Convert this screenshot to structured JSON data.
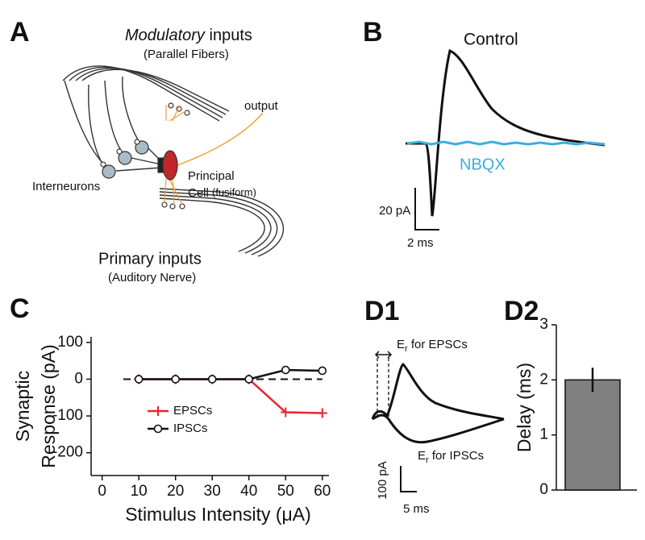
{
  "panels": [
    "A",
    "B",
    "C",
    "D1",
    "D2"
  ],
  "diagram": {
    "modulatory_italic": "Modulatory",
    "modulatory_rest": "inputs",
    "parallel_fibers": "(Parallel Fibers)",
    "output": "output",
    "interneurons": "Interneurons",
    "principal": "Principal",
    "cell": "Cell",
    "fusiform": "(fusiform)",
    "primary": "Primary inputs",
    "auditory": "(Auditory Nerve)"
  },
  "traces_b": {
    "control": "Control",
    "nbqx": "NBQX",
    "scale_y": "20 pA",
    "scale_x": "2 ms"
  },
  "traces_d1": {
    "e_symbol": "E",
    "e_subscript": "r",
    "epsc_text": "for EPSCs",
    "ipsc_text": "for IPSCs",
    "scale_y": "100 pA",
    "scale_x": "5 ms"
  },
  "chart_data": [
    {
      "type": "line",
      "xlabel": "Stimulus Intensity  (μA)",
      "ylabel": [
        "Synaptic",
        "Response (pA)"
      ],
      "x": [
        10,
        20,
        30,
        40,
        50,
        60
      ],
      "series": [
        {
          "name": "EPSCs",
          "color": "#e8262b",
          "marker": "plus",
          "values": [
            0,
            0,
            0,
            0,
            -90,
            -92
          ]
        },
        {
          "name": "IPSCs",
          "color": "#111111",
          "marker": "circle",
          "values": [
            0,
            0,
            0,
            0,
            25,
            23
          ]
        }
      ],
      "xlim": [
        -3,
        61.8
      ],
      "ylim": [
        -262,
        115
      ],
      "xticks": [
        0,
        10,
        20,
        30,
        40,
        50,
        60
      ],
      "yticks": [
        100,
        0,
        -100,
        -200
      ],
      "hline": 0,
      "legend": "lower left"
    },
    {
      "type": "bar",
      "ylabel": "Delay (ms)",
      "categories": [
        null
      ],
      "values": [
        2
      ],
      "errors": [
        0.22
      ],
      "color": "#808080",
      "ylim": [
        0,
        3
      ],
      "yticks": [
        0,
        1,
        2,
        3
      ]
    }
  ]
}
